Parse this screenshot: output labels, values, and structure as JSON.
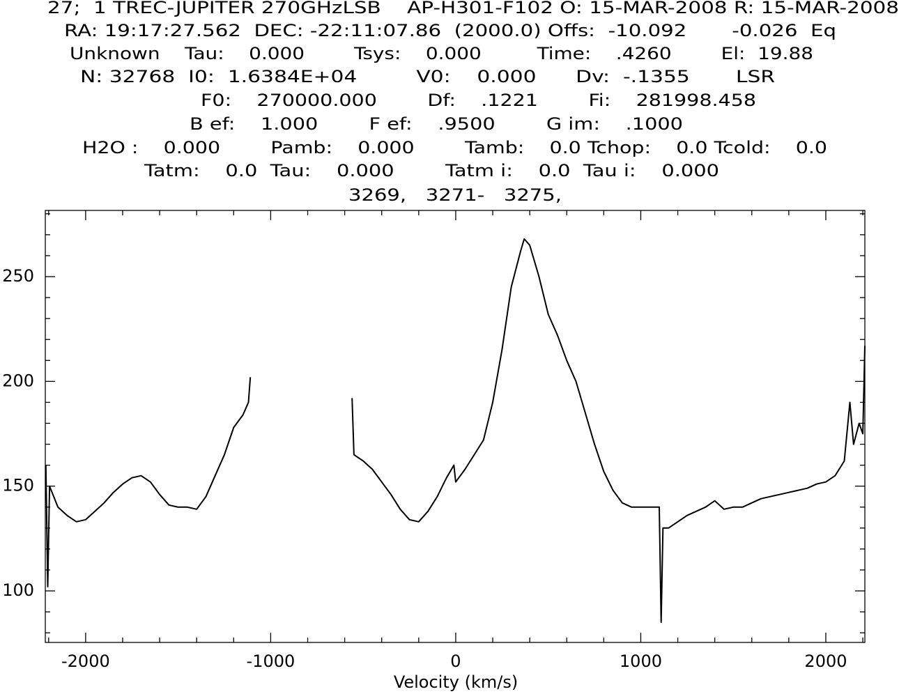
{
  "chart_data": {
    "type": "line",
    "header_lines": [
      "27;  1 TREC-JUPITER 270GHzLSB    AP-H301-F102 O: 15-MAR-2008 R: 15-MAR-2008",
      "RA: 19:17:27.562  DEC: -22:11:07.86  (2000.0) Offs:  -10.092       -0.026  Eq",
      "Unknown    Tau:    0.000        Tsys:    0.000         Time:    .4260        El:  19.88",
      "N: 32768  I0:  1.6384E+04         V0:    0.000      Dv:  -.1355       LSR",
      "F0:    270000.000        Df:    .1221        Fi:    281998.458",
      "B ef:    1.000        F ef:    .9500        G im:    .1000",
      "H2O :    0.000        Pamb:    0.000        Tamb:    0.0 Tchop:    0.0 Tcold:    0.0",
      "Tatm:    0.0  Tau:    0.000        Tatm i:    0.0  Tau i:    0.000",
      "3269,   3271-   3275,"
    ],
    "x_label": "Velocity (km/s)",
    "x": [
      -2215,
      -2205,
      -2195,
      -2150,
      -2100,
      -2050,
      -2000,
      -1950,
      -1900,
      -1850,
      -1800,
      -1750,
      -1700,
      -1650,
      -1600,
      -1550,
      -1500,
      -1450,
      -1400,
      -1350,
      -1300,
      -1250,
      -1200,
      -1150,
      -1120,
      -1110,
      -835,
      -560,
      -550,
      -500,
      -450,
      -400,
      -350,
      -300,
      -250,
      -200,
      -150,
      -100,
      -50,
      -10,
      0,
      50,
      100,
      150,
      200,
      250,
      300,
      350,
      370,
      400,
      450,
      500,
      550,
      600,
      650,
      700,
      750,
      800,
      850,
      900,
      950,
      1000,
      1100,
      1110,
      1120,
      1150,
      1200,
      1250,
      1300,
      1350,
      1400,
      1450,
      1500,
      1550,
      1600,
      1650,
      1700,
      1750,
      1800,
      1850,
      1900,
      1950,
      2000,
      2050,
      2100,
      2130,
      2150,
      2180,
      2200,
      2211
    ],
    "series": [
      {
        "color": "#000000",
        "values": [
          160,
          102,
          150,
          140,
          136,
          133,
          134,
          138,
          142,
          147,
          151,
          154,
          155,
          152,
          146,
          141,
          140,
          140,
          139,
          145,
          155,
          165,
          178,
          184,
          190,
          202,
          null,
          192,
          165,
          162,
          158,
          152,
          146,
          139,
          134,
          133,
          138,
          145,
          154,
          160,
          152,
          158,
          165,
          172,
          190,
          215,
          245,
          262,
          268,
          265,
          250,
          232,
          222,
          210,
          200,
          185,
          170,
          157,
          148,
          142,
          140,
          140,
          140,
          85,
          130,
          130,
          133,
          136,
          138,
          140,
          143,
          139,
          140,
          140,
          142,
          144,
          145,
          146,
          147,
          148,
          149,
          151,
          152,
          155,
          162,
          190,
          170,
          180,
          175,
          217
        ]
      }
    ],
    "xlim": [
      -2218,
      2211
    ],
    "ylim": [
      75.4,
      281.6
    ],
    "xticks": [
      -2000,
      -1000,
      0,
      1000,
      2000
    ],
    "yticks": [
      100,
      150,
      200,
      250
    ],
    "xminorticks": [
      -2200,
      -1800,
      -1600,
      -1400,
      -1200,
      -800,
      -600,
      -400,
      -200,
      200,
      400,
      600,
      800,
      1200,
      1400,
      1600,
      1800,
      2200
    ],
    "yminorticks": [
      80,
      90,
      110,
      120,
      130,
      140,
      160,
      170,
      180,
      190,
      210,
      220,
      230,
      240,
      260,
      270,
      280
    ]
  }
}
